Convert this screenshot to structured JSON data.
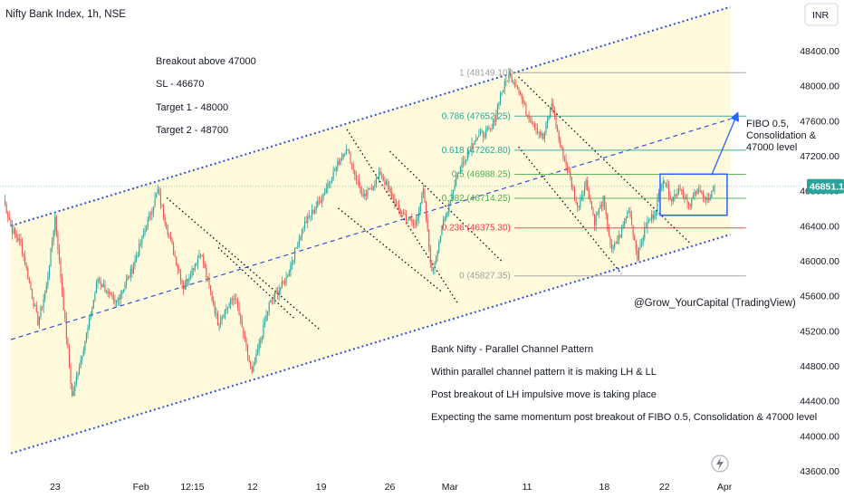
{
  "header": {
    "symbol": "Nifty Bank Index, 1h, NSE",
    "currency": "INR"
  },
  "colors": {
    "up": "#26a69a",
    "down": "#ef5350",
    "channel_line": "#2f4fd8",
    "channel_fill": "#fff9d6",
    "fib_green": "#4caf50",
    "fib_red": "#f23645",
    "fib_teal": "#26a69a",
    "price_tag": "#26a69a",
    "box": "#2962ff"
  },
  "chart_data": {
    "type": "candlestick",
    "title": "Nifty Bank Index, 1h, NSE",
    "yaxis": {
      "label": "INR",
      "range": [
        43600,
        48850
      ],
      "ticks": [
        "48400.00",
        "48000.00",
        "47600.00",
        "47200.00",
        "46800.00",
        "46400.00",
        "46000.00",
        "45600.00",
        "45200.00",
        "44800.00",
        "44400.00",
        "44000.00",
        "43600.00"
      ],
      "tick_values": [
        48400,
        48000,
        47600,
        47200,
        46800,
        46400,
        46000,
        45600,
        45200,
        44800,
        44400,
        44000,
        43600
      ]
    },
    "xaxis": {
      "ticks": [
        "23",
        "Feb",
        "12:15",
        "12",
        "19",
        "26",
        "Mar",
        "11",
        "18",
        "22",
        "Apr"
      ],
      "tick_index": [
        6,
        16,
        22,
        29,
        37,
        45,
        52,
        61,
        70,
        77,
        84
      ],
      "bars": 86
    },
    "last_price": "46851.15",
    "last_price_value": 46851.15,
    "path": [
      [
        0,
        46700
      ],
      [
        1,
        46350
      ],
      [
        2,
        46200
      ],
      [
        4,
        45300
      ],
      [
        5,
        45700
      ],
      [
        6,
        46500
      ],
      [
        8,
        44450
      ],
      [
        10,
        45300
      ],
      [
        11,
        45800
      ],
      [
        13,
        45500
      ],
      [
        15,
        45900
      ],
      [
        18,
        46800
      ],
      [
        19,
        46400
      ],
      [
        21,
        45700
      ],
      [
        23,
        46100
      ],
      [
        25,
        45300
      ],
      [
        27,
        45600
      ],
      [
        29,
        44700
      ],
      [
        31,
        45500
      ],
      [
        33,
        45800
      ],
      [
        35,
        46400
      ],
      [
        37,
        46700
      ],
      [
        39,
        47100
      ],
      [
        40,
        47300
      ],
      [
        42,
        46700
      ],
      [
        44,
        47000
      ],
      [
        46,
        46600
      ],
      [
        48,
        46400
      ],
      [
        49,
        46800
      ],
      [
        50,
        45850
      ],
      [
        51,
        46300
      ],
      [
        53,
        47000
      ],
      [
        55,
        47400
      ],
      [
        57,
        47500
      ],
      [
        58,
        47900
      ],
      [
        59,
        48120
      ],
      [
        60,
        48000
      ],
      [
        61,
        47700
      ],
      [
        63,
        47400
      ],
      [
        64,
        47800
      ],
      [
        65,
        47300
      ],
      [
        66,
        47000
      ],
      [
        67,
        46600
      ],
      [
        68,
        46900
      ],
      [
        69,
        46450
      ],
      [
        70,
        46700
      ],
      [
        71,
        46100
      ],
      [
        72,
        46300
      ],
      [
        73,
        46600
      ],
      [
        74,
        46050
      ],
      [
        75,
        46400
      ],
      [
        76,
        46550
      ],
      [
        77,
        46950
      ],
      [
        78,
        46700
      ],
      [
        79,
        46850
      ],
      [
        80,
        46600
      ],
      [
        81,
        46850
      ],
      [
        82,
        46650
      ],
      [
        83,
        46850
      ]
    ],
    "channel": {
      "upper": [
        [
          0,
          46400
        ],
        [
          85,
          48900
        ]
      ],
      "lower": [
        [
          0,
          43800
        ],
        [
          85,
          46300
        ]
      ],
      "mid": [
        [
          0,
          45100
        ],
        [
          85,
          47620
        ]
      ]
    },
    "fibonacci": [
      {
        "label": "1 (48149.10)",
        "value": 48149.1,
        "color": "#9e9e9e"
      },
      {
        "label": "0.786 (47652.25)",
        "value": 47652.25,
        "color": "#26a69a"
      },
      {
        "label": "0.618 (47262.80)",
        "value": 47262.8,
        "color": "#26a69a"
      },
      {
        "label": "0.5 (46988.25)",
        "value": 46988.25,
        "color": "#4caf50"
      },
      {
        "label": "0.382 (46714.25)",
        "value": 46714.25,
        "color": "#4caf50"
      },
      {
        "label": "0.236 (46375.30)",
        "value": 46375.3,
        "color": "#f23645"
      },
      {
        "label": "0 (45827.35)",
        "value": 45827.35,
        "color": "#9e9e9e"
      }
    ],
    "dotted_lines": [
      [
        [
          19,
          46720
        ],
        [
          37,
          45200
        ]
      ],
      [
        [
          25,
          46150
        ],
        [
          34,
          45330
        ]
      ],
      [
        [
          40,
          47500
        ],
        [
          53,
          45500
        ]
      ],
      [
        [
          39,
          46600
        ],
        [
          51,
          45650
        ]
      ],
      [
        [
          45,
          47250
        ],
        [
          58,
          46000
        ]
      ],
      [
        [
          60,
          48100
        ],
        [
          80,
          46200
        ]
      ],
      [
        [
          60,
          47300
        ],
        [
          72,
          45850
        ]
      ]
    ],
    "consolidation_box": {
      "x": [
        76.5,
        84.3
      ],
      "y": [
        46520,
        46990
      ]
    },
    "arrow": {
      "from": [
        82.5,
        46980
      ],
      "to": [
        85.5,
        47680
      ]
    },
    "annotations": {
      "trade_plan": [
        "Breakout above 47000",
        "SL - 46670",
        "Target 1 - 48000",
        "Target 2 - 48700"
      ],
      "fibo_note": [
        "FIBO 0.5,",
        "Consolidation &",
        "47000 level"
      ],
      "watermark": "@Grow_YourCapital (TradingView)",
      "analysis": [
        "Bank Nifty  - Parallel Channel Pattern",
        "Within parallel channel pattern it is making LH & LL",
        "Post breakout of LH impulsive move is taking place",
        "Expecting the same momentum post breakout of FIBO 0.5, Consolidation & 47000 level"
      ]
    }
  }
}
